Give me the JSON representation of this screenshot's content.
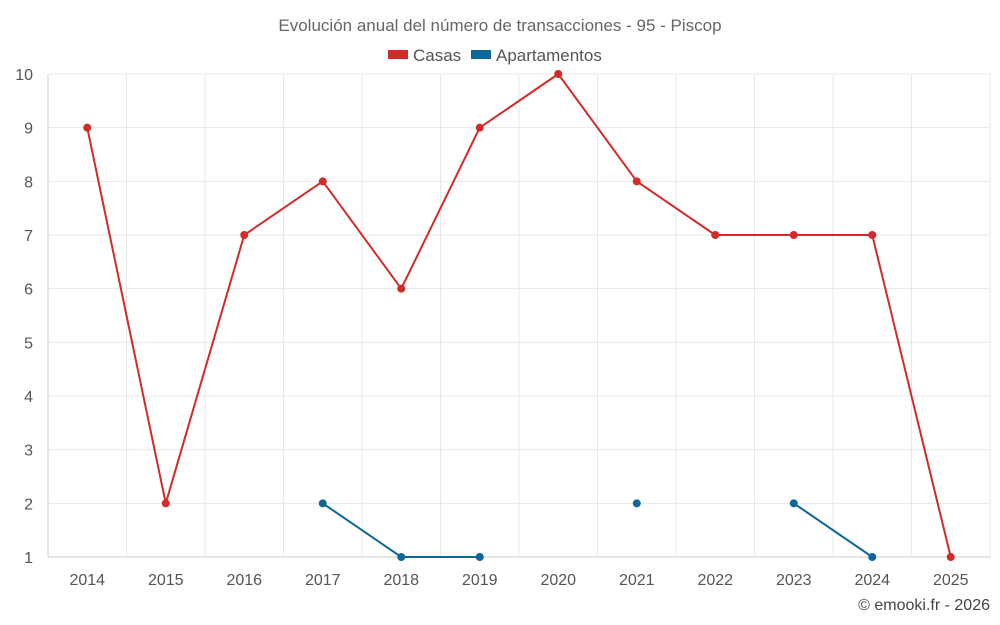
{
  "chart_data": {
    "type": "line",
    "title": "Evolución anual del número de transacciones - 95 - Piscop",
    "categories": [
      "2014",
      "2015",
      "2016",
      "2017",
      "2018",
      "2019",
      "2020",
      "2021",
      "2022",
      "2023",
      "2024",
      "2025"
    ],
    "ylim": [
      1,
      10
    ],
    "yticks": [
      1,
      2,
      3,
      4,
      5,
      6,
      7,
      8,
      9,
      10
    ],
    "grid": true,
    "legend_position": "top-center",
    "series": [
      {
        "name": "Casas",
        "color": "#d32a2a",
        "values": [
          9,
          2,
          7,
          8,
          6,
          9,
          10,
          8,
          7,
          7,
          7,
          1
        ]
      },
      {
        "name": "Apartamentos",
        "color": "#0e6699",
        "values": [
          null,
          null,
          null,
          2,
          1,
          1,
          null,
          2,
          null,
          2,
          1,
          null
        ]
      }
    ]
  },
  "credit": "© emooki.fr - 2026"
}
